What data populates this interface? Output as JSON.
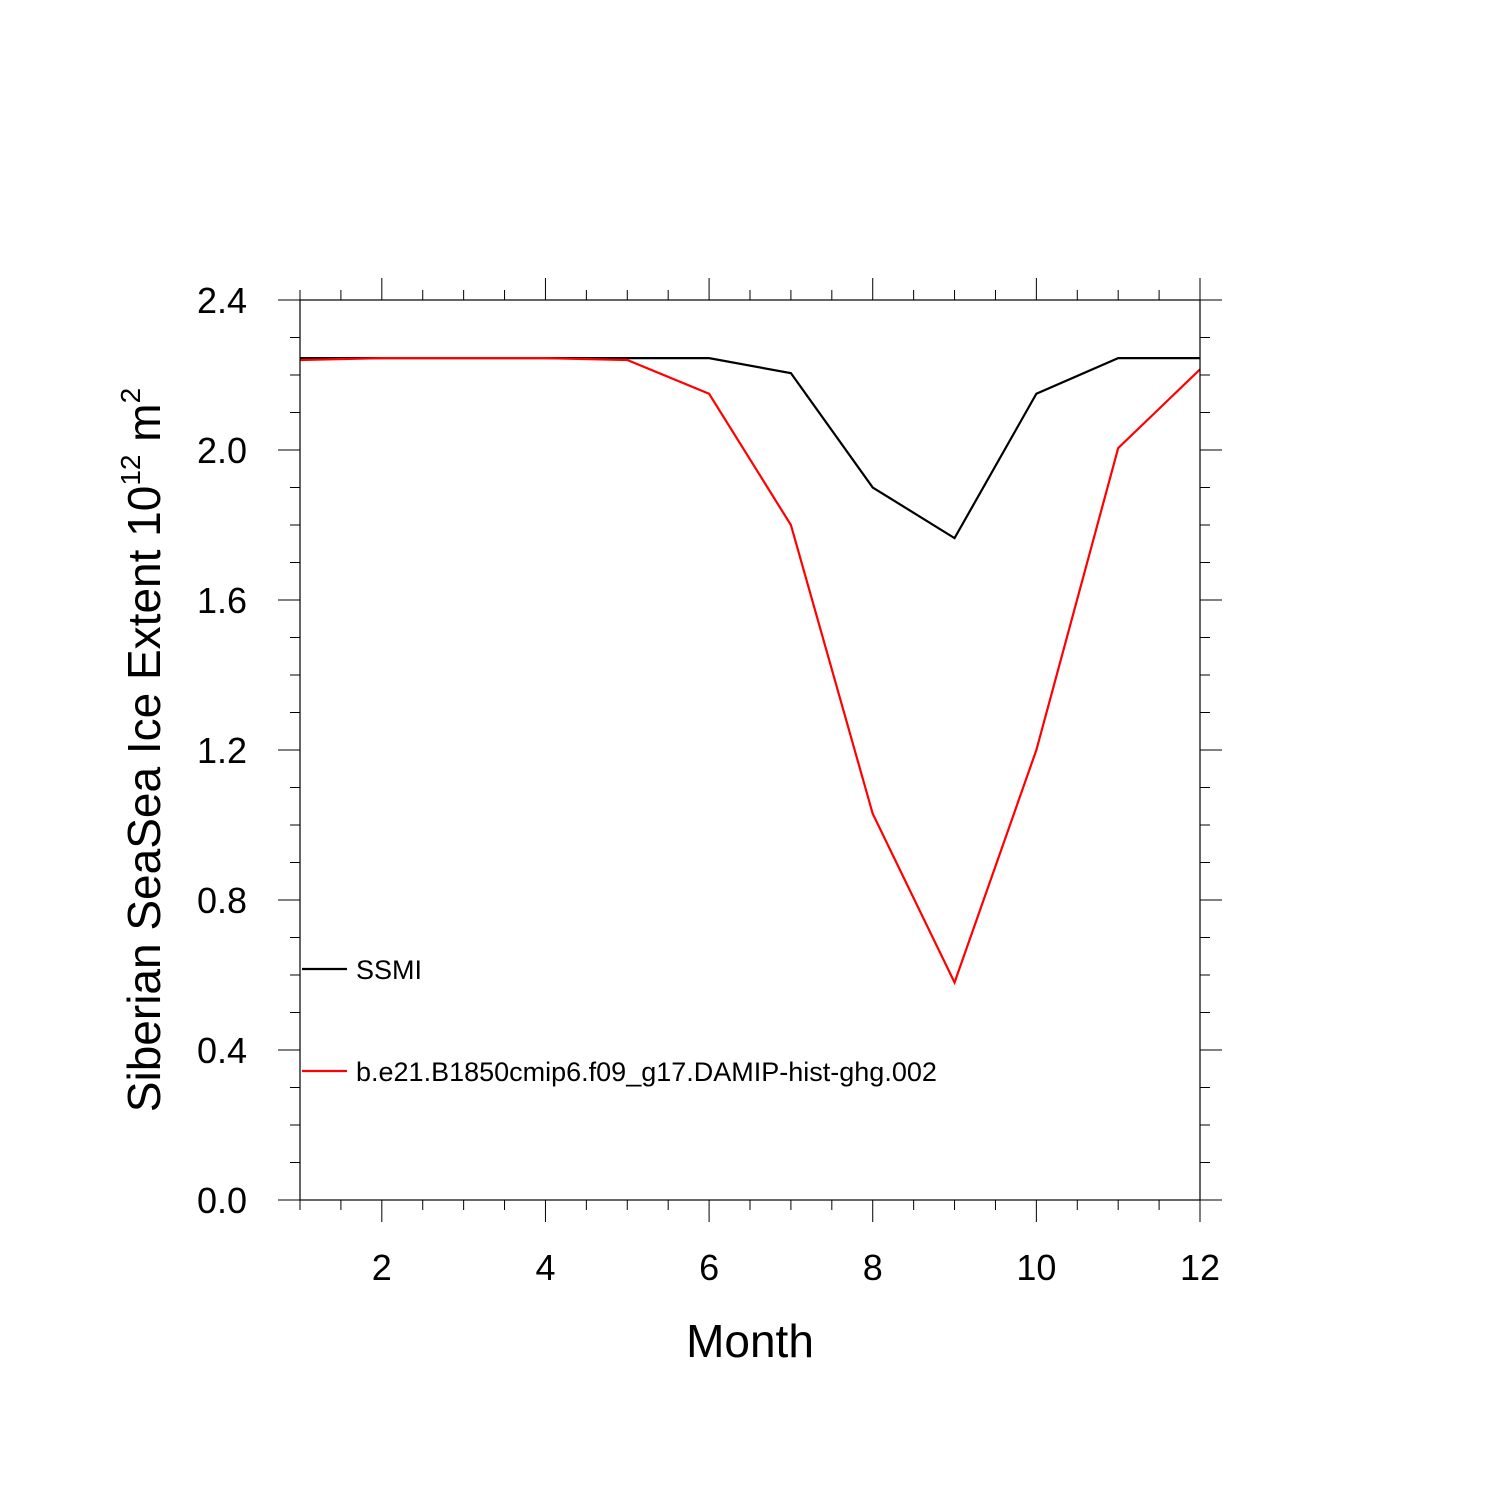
{
  "chart_data": {
    "type": "line",
    "xlabel": "Month",
    "ylabel": {
      "main": "Siberian SeaSea Ice Extent 10",
      "exp1": "12",
      "unit": " m",
      "exp2": "2"
    },
    "xlim": [
      1,
      12
    ],
    "ylim": [
      0,
      2.4
    ],
    "x_ticks": [
      2,
      4,
      6,
      8,
      10,
      12
    ],
    "y_ticks": [
      "0.0",
      "0.4",
      "0.8",
      "1.2",
      "1.6",
      "2.0",
      "2.4"
    ],
    "grid": false,
    "legend_position": "bottom-left",
    "x": [
      1,
      2,
      3,
      4,
      5,
      6,
      7,
      8,
      9,
      10,
      11,
      12
    ],
    "series": [
      {
        "name": "SSMI",
        "color": "#000000",
        "values": [
          2.245,
          2.245,
          2.245,
          2.245,
          2.245,
          2.245,
          2.205,
          1.9,
          1.765,
          2.15,
          2.245,
          2.245
        ]
      },
      {
        "name": "b.e21.B1850cmip6.f09_g17.DAMIP-hist-ghg.002",
        "color": "#ff0000",
        "values": [
          2.24,
          2.245,
          2.245,
          2.245,
          2.24,
          2.15,
          1.8,
          1.03,
          0.58,
          1.2,
          2.005,
          2.215
        ]
      }
    ]
  }
}
